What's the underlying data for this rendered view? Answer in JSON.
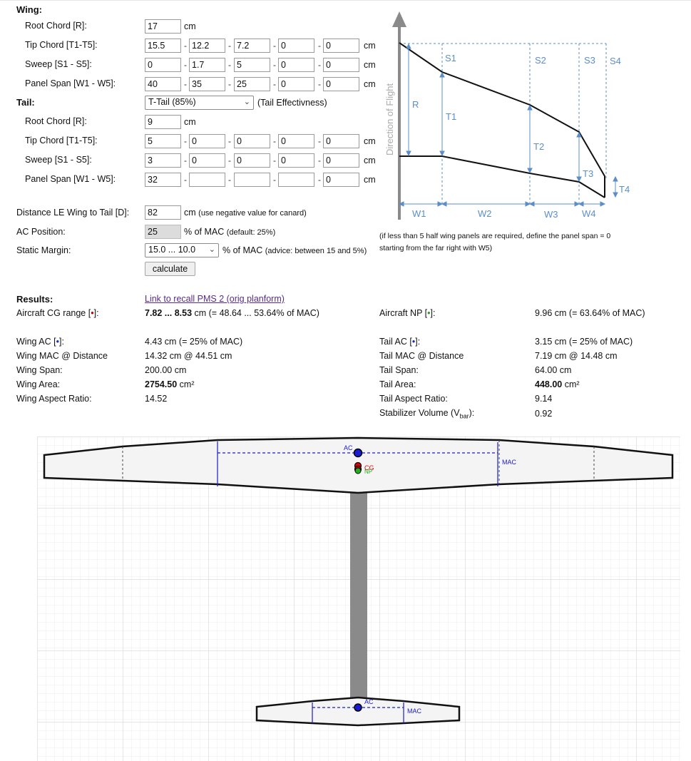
{
  "wing": {
    "header": "Wing:",
    "root_label": "Root Chord [R]:",
    "root_value": "17",
    "tip_label": "Tip Chord [T1-T5]:",
    "tip_values": [
      "15.5",
      "12.2",
      "7.2",
      "0",
      "0"
    ],
    "sweep_label": "Sweep [S1 - S5]:",
    "sweep_values": [
      "0",
      "1.7",
      "5",
      "0",
      "0"
    ],
    "span_label": "Panel Span [W1 - W5]:",
    "span_values": [
      "40",
      "35",
      "25",
      "0",
      "0"
    ]
  },
  "tail": {
    "header": "Tail:",
    "type_selected": "T-Tail (85%)",
    "effectiveness_label": "(Tail Effectivness)",
    "root_label": "Root Chord [R]:",
    "root_value": "9",
    "tip_label": "Tip Chord [T1-T5]:",
    "tip_values": [
      "5",
      "0",
      "0",
      "0",
      "0"
    ],
    "sweep_label": "Sweep [S1 - S5]:",
    "sweep_values": [
      "3",
      "0",
      "0",
      "0",
      "0"
    ],
    "span_label": "Panel Span [W1 - W5]:",
    "span_values": [
      "32",
      "",
      "",
      "",
      "0"
    ]
  },
  "units": {
    "cm": "cm",
    "dash": "-"
  },
  "distance": {
    "label": "Distance LE Wing to Tail [D]:",
    "value": "82",
    "hint": "(use negative value for canard)"
  },
  "ac_position": {
    "label": "AC Position:",
    "value": "25",
    "unit": "% of MAC",
    "hint": "(default: 25%)"
  },
  "static_margin": {
    "label": "Static Margin:",
    "selected": "15.0 ... 10.0",
    "unit": "% of MAC",
    "hint": "(advice: between 15 and 5%)"
  },
  "calculate_label": "calculate",
  "diagram": {
    "direction_label": "Direction of Flight",
    "labels": [
      "S1",
      "S2",
      "S3",
      "S4",
      "R",
      "T1",
      "T2",
      "T3",
      "T4",
      "W1",
      "W2",
      "W3",
      "W4"
    ],
    "note_line1": "(if less than 5 half wing panels are required, define the panel span = 0",
    "note_line2": "starting from the far right with W5)"
  },
  "results": {
    "header": "Results:",
    "recall_link": "Link to recall PMS 2 (orig planform)",
    "cg_label": "Aircraft CG range [",
    "cg_label_end": "]:",
    "cg_value_bold": "7.82 ... 8.53",
    "cg_value_rest": " cm (= 48.64 ... 53.64% of MAC)",
    "np_label": "Aircraft NP [",
    "np_label_end": "]:",
    "np_value": "9.96 cm (= 63.64% of MAC)",
    "left": [
      {
        "label": "Wing AC [",
        "label_end": "]:",
        "value": "4.43 cm (= 25% of MAC)"
      },
      {
        "label": "Wing MAC @ Distance",
        "value": "14.32 cm @ 44.51 cm"
      },
      {
        "label": "Wing Span:",
        "value": "200.00 cm"
      },
      {
        "label": "Wing Area:",
        "value_bold": "2754.50",
        "unit": "cm²"
      },
      {
        "label": "Wing Aspect Ratio:",
        "value": "14.52"
      }
    ],
    "right": [
      {
        "label": "Tail AC [",
        "label_end": "]:",
        "value": "3.15 cm (= 25% of MAC)"
      },
      {
        "label": "Tail MAC @ Distance",
        "value": "7.19 cm @ 14.48 cm"
      },
      {
        "label": "Tail Span:",
        "value": "64.00 cm"
      },
      {
        "label": "Tail Area:",
        "value_bold": "448.00",
        "unit": "cm²"
      },
      {
        "label": "Tail Aspect Ratio:",
        "value": "9.14"
      },
      {
        "label": "Stabilizer Volume (V",
        "label_sub": "bar",
        "label_end": "):",
        "value": "0.92"
      }
    ],
    "dot": "•"
  },
  "planform": {
    "wing_labels": {
      "ac": "AC",
      "cg": "CG",
      "np": "NP",
      "mac": "MAC"
    },
    "tail_labels": {
      "ac": "AC",
      "mac": "MAC"
    }
  },
  "colors": {
    "diagram_blue": "#5b8ec9",
    "mac_blue": "#1a1ad0",
    "cg_red": "#e00000",
    "np_green": "#20b020",
    "grid": "#e4e4e4",
    "fuselage": "#8a8a8a"
  }
}
